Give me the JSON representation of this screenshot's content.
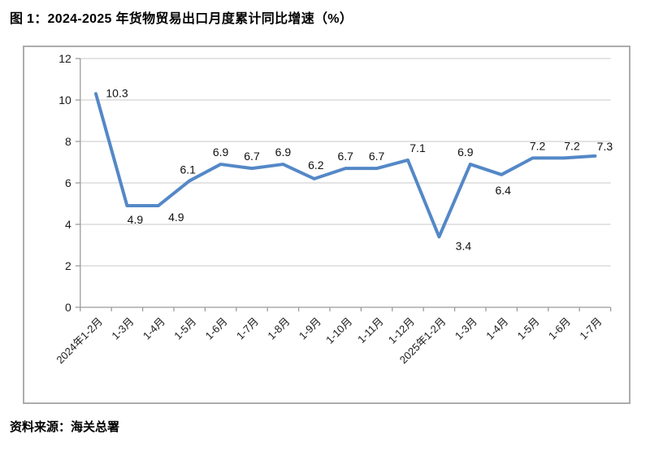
{
  "title": "图 1：2024-2025 年货物贸易出口月度累计同比增速（%）",
  "source": "资料来源：海关总署",
  "chart_data": {
    "type": "line",
    "title": "图 1：2024-2025 年货物贸易出口月度累计同比增速（%）",
    "categories": [
      "2024年1-2月",
      "1-3月",
      "1-4月",
      "1-5月",
      "1-6月",
      "1-7月",
      "1-8月",
      "1-9月",
      "1-10月",
      "1-11月",
      "1-12月",
      "2025年1-2月",
      "1-3月",
      "1-4月",
      "1-5月",
      "1-6月",
      "1-7月"
    ],
    "values": [
      10.3,
      4.9,
      4.9,
      6.1,
      6.9,
      6.7,
      6.9,
      6.2,
      6.7,
      6.7,
      7.1,
      3.4,
      6.9,
      6.4,
      7.2,
      7.2,
      7.3
    ],
    "xlabel": "",
    "ylabel": "",
    "ylim": [
      0,
      12
    ],
    "ytick_step": 2,
    "yticks": [
      0,
      2,
      4,
      6,
      8,
      10,
      12
    ],
    "grid": true,
    "legend": "none",
    "data_labels": true,
    "line_color": "#5488C7",
    "gridline_color": "#C9C9C9",
    "axis_color": "#9B9B9B",
    "label_color": "#111111",
    "frame_color": "#ACACAC",
    "source": "资料来源：海关总署"
  }
}
